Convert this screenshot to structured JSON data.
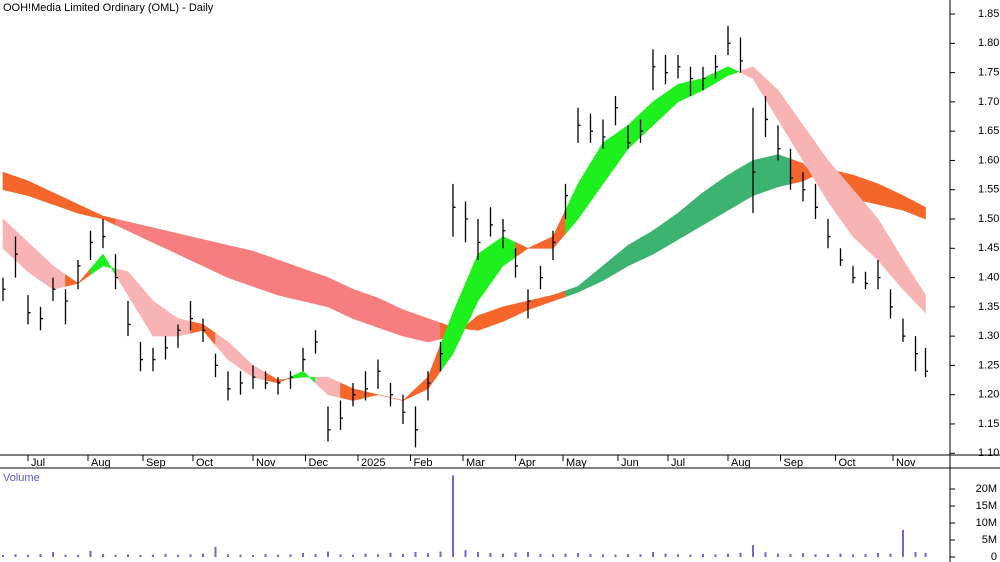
{
  "chart_data": [
    {
      "type": "ohlc",
      "title": "OOH!Media Limited Ordinary (OML) - Daily",
      "color": "#000000",
      "x": [
        0,
        5,
        10,
        15,
        20,
        25,
        30,
        35,
        40,
        45,
        50,
        55,
        60,
        65,
        70,
        75,
        80,
        85,
        90,
        95,
        100,
        105,
        110,
        115,
        120,
        125,
        130,
        135,
        140,
        145,
        150,
        155,
        160,
        165,
        170,
        175,
        180,
        185,
        190,
        195,
        200,
        205,
        210,
        215,
        220,
        225,
        230,
        235,
        240,
        245,
        250,
        255,
        260,
        265,
        270,
        275,
        280,
        285,
        290,
        295,
        300,
        305,
        310,
        315,
        320,
        325,
        330,
        335,
        340,
        345,
        350,
        355,
        360,
        365,
        369
      ],
      "high": [
        1.4,
        1.47,
        1.37,
        1.35,
        1.4,
        1.38,
        1.43,
        1.48,
        1.5,
        1.44,
        1.36,
        1.29,
        1.28,
        1.3,
        1.32,
        1.36,
        1.33,
        1.27,
        1.24,
        1.24,
        1.25,
        1.24,
        1.23,
        1.24,
        1.28,
        1.31,
        1.18,
        1.19,
        1.22,
        1.24,
        1.26,
        1.22,
        1.2,
        1.18,
        1.24,
        1.29,
        1.56,
        1.53,
        1.5,
        1.52,
        1.5,
        1.45,
        1.38,
        1.42,
        1.48,
        1.56,
        1.69,
        1.68,
        1.67,
        1.71,
        1.66,
        1.67,
        1.79,
        1.78,
        1.78,
        1.76,
        1.76,
        1.78,
        1.83,
        1.81,
        1.69,
        1.71,
        1.66,
        1.62,
        1.58,
        1.56,
        1.5,
        1.45,
        1.42,
        1.41,
        1.43,
        1.38,
        1.33,
        1.3,
        1.28
      ],
      "low": [
        1.36,
        1.4,
        1.32,
        1.31,
        1.36,
        1.32,
        1.38,
        1.43,
        1.45,
        1.38,
        1.3,
        1.24,
        1.24,
        1.26,
        1.28,
        1.31,
        1.29,
        1.23,
        1.19,
        1.2,
        1.21,
        1.21,
        1.2,
        1.21,
        1.24,
        1.27,
        1.12,
        1.14,
        1.18,
        1.19,
        1.21,
        1.18,
        1.15,
        1.11,
        1.19,
        1.24,
        1.47,
        1.46,
        1.43,
        1.47,
        1.45,
        1.4,
        1.33,
        1.38,
        1.43,
        1.5,
        1.63,
        1.63,
        1.62,
        1.66,
        1.62,
        1.63,
        1.72,
        1.73,
        1.74,
        1.71,
        1.72,
        1.74,
        1.78,
        1.75,
        1.51,
        1.64,
        1.6,
        1.55,
        1.53,
        1.5,
        1.45,
        1.42,
        1.39,
        1.38,
        1.38,
        1.33,
        1.29,
        1.24,
        1.23
      ],
      "close": [
        1.38,
        1.44,
        1.34,
        1.33,
        1.38,
        1.36,
        1.42,
        1.46,
        1.47,
        1.4,
        1.32,
        1.26,
        1.26,
        1.28,
        1.31,
        1.33,
        1.31,
        1.25,
        1.21,
        1.22,
        1.23,
        1.22,
        1.22,
        1.23,
        1.26,
        1.29,
        1.14,
        1.16,
        1.2,
        1.21,
        1.24,
        1.2,
        1.17,
        1.14,
        1.22,
        1.27,
        1.52,
        1.5,
        1.46,
        1.49,
        1.48,
        1.42,
        1.36,
        1.4,
        1.46,
        1.54,
        1.66,
        1.65,
        1.64,
        1.69,
        1.63,
        1.65,
        1.76,
        1.75,
        1.76,
        1.74,
        1.74,
        1.76,
        1.8,
        1.77,
        1.58,
        1.67,
        1.62,
        1.57,
        1.55,
        1.52,
        1.47,
        1.43,
        1.4,
        1.39,
        1.4,
        1.35,
        1.3,
        1.27,
        1.24
      ],
      "ribbon_x": [
        0,
        10,
        20,
        30,
        40,
        50,
        60,
        70,
        80,
        90,
        100,
        110,
        120,
        130,
        140,
        150,
        160,
        170,
        180,
        190,
        200,
        210,
        220,
        230,
        240,
        250,
        260,
        270,
        280,
        290,
        300,
        310,
        320,
        330,
        340,
        350,
        360,
        369
      ],
      "ribbons": [
        {
          "fast": [
            1.55,
            1.54,
            1.525,
            1.51,
            1.5,
            1.48,
            1.46,
            1.44,
            1.42,
            1.4,
            1.385,
            1.37,
            1.36,
            1.35,
            1.33,
            1.315,
            1.3,
            1.29,
            1.3,
            1.335,
            1.35,
            1.36,
            1.37,
            1.385,
            1.42,
            1.455,
            1.48,
            1.51,
            1.545,
            1.575,
            1.6,
            1.61,
            1.595,
            1.545,
            1.535,
            1.525,
            1.515,
            1.5
          ],
          "slow": [
            1.58,
            1.565,
            1.545,
            1.525,
            1.505,
            1.495,
            1.485,
            1.475,
            1.465,
            1.455,
            1.445,
            1.43,
            1.415,
            1.4,
            1.38,
            1.365,
            1.345,
            1.33,
            1.315,
            1.31,
            1.325,
            1.345,
            1.36,
            1.375,
            1.395,
            1.42,
            1.44,
            1.465,
            1.49,
            1.515,
            1.54,
            1.555,
            1.565,
            1.585,
            1.575,
            1.56,
            1.54,
            1.52
          ],
          "colors": [
            "#f4662a",
            "#f4662a",
            "#f4662a",
            "#f4662a",
            "#f4662a",
            "#f77e7e",
            "#f77e7e",
            "#f77e7e",
            "#f77e7e",
            "#f77e7e",
            "#f77e7e",
            "#f77e7e",
            "#f77e7e",
            "#f77e7e",
            "#f77e7e",
            "#f77e7e",
            "#f77e7e",
            "#f77e7e",
            "#f4662a",
            "#f4662a",
            "#f4662a",
            "#f4662a",
            "#f4662a",
            "#3cb371",
            "#3cb371",
            "#3cb371",
            "#3cb371",
            "#3cb371",
            "#3cb371",
            "#3cb371",
            "#3cb371",
            "#3cb371",
            "#f4662a",
            "#f4662a",
            "#f4662a",
            "#f4662a",
            "#f4662a",
            "#f4662a"
          ]
        },
        {
          "fast": [
            1.45,
            1.41,
            1.38,
            1.39,
            1.44,
            1.37,
            1.3,
            1.3,
            1.31,
            1.26,
            1.23,
            1.22,
            1.24,
            1.2,
            1.19,
            1.2,
            1.19,
            1.23,
            1.34,
            1.44,
            1.47,
            1.45,
            1.47,
            1.56,
            1.63,
            1.66,
            1.7,
            1.73,
            1.74,
            1.76,
            1.74,
            1.67,
            1.6,
            1.53,
            1.47,
            1.43,
            1.38,
            1.34
          ],
          "slow": [
            1.5,
            1.46,
            1.42,
            1.39,
            1.42,
            1.41,
            1.36,
            1.33,
            1.32,
            1.29,
            1.25,
            1.225,
            1.23,
            1.23,
            1.21,
            1.2,
            1.19,
            1.21,
            1.27,
            1.36,
            1.42,
            1.45,
            1.45,
            1.5,
            1.56,
            1.62,
            1.66,
            1.7,
            1.72,
            1.745,
            1.76,
            1.72,
            1.66,
            1.6,
            1.55,
            1.5,
            1.43,
            1.37
          ],
          "colors": [
            "#f8b4b4",
            "#f8b4b4",
            "#f8b4b4",
            "#f4662a",
            "#1ef01e",
            "#f8b4b4",
            "#f8b4b4",
            "#f8b4b4",
            "#f4662a",
            "#f8b4b4",
            "#f8b4b4",
            "#f4662a",
            "#1ef01e",
            "#f8b4b4",
            "#f4662a",
            "#f4662a",
            "#f4662a",
            "#f4662a",
            "#1ef01e",
            "#1ef01e",
            "#1ef01e",
            "#f4662a",
            "#f4662a",
            "#1ef01e",
            "#1ef01e",
            "#1ef01e",
            "#1ef01e",
            "#1ef01e",
            "#1ef01e",
            "#1ef01e",
            "#f8b4b4",
            "#f8b4b4",
            "#f8b4b4",
            "#f8b4b4",
            "#f8b4b4",
            "#f8b4b4",
            "#f8b4b4",
            "#f8b4b4"
          ]
        }
      ],
      "xlim": [
        -1.2,
        378.8
      ],
      "xticks": [
        {
          "value": 10,
          "label": "Jul"
        },
        {
          "value": 34,
          "label": "Aug"
        },
        {
          "value": 56,
          "label": "Sep"
        },
        {
          "value": 76,
          "label": "Oct"
        },
        {
          "value": 100,
          "label": "Nov"
        },
        {
          "value": 121,
          "label": "Dec"
        },
        {
          "value": 142,
          "label": "2025"
        },
        {
          "value": 163,
          "label": "Feb"
        },
        {
          "value": 184,
          "label": "Mar"
        },
        {
          "value": 205,
          "label": "Apr"
        },
        {
          "value": 224,
          "label": "May"
        },
        {
          "value": 246,
          "label": "Jun"
        },
        {
          "value": 266,
          "label": "Jul"
        },
        {
          "value": 290,
          "label": "Aug"
        },
        {
          "value": 311,
          "label": "Sep"
        },
        {
          "value": 333,
          "label": "Oct"
        },
        {
          "value": 356,
          "label": "Nov"
        }
      ],
      "ylim": [
        1.097,
        1.874
      ],
      "yticks": [
        {
          "value": 1.1,
          "label": "1.10"
        },
        1.15,
        {
          "value": 1.2,
          "label": "1.20"
        },
        1.25,
        {
          "value": 1.3,
          "label": "1.30"
        },
        1.35,
        {
          "value": 1.4,
          "label": "1.40"
        },
        1.45,
        {
          "value": 1.5,
          "label": "1.50"
        },
        1.55,
        {
          "value": 1.6,
          "label": "1.60"
        },
        1.65,
        {
          "value": 1.7,
          "label": "1.70"
        },
        1.75,
        {
          "value": 1.8,
          "label": "1.80"
        },
        1.85
      ]
    },
    {
      "type": "bar",
      "title": "Volume",
      "color": "#6a6ad0",
      "x": [
        0,
        5,
        10,
        15,
        20,
        25,
        30,
        35,
        40,
        45,
        50,
        55,
        60,
        65,
        70,
        75,
        80,
        85,
        90,
        95,
        100,
        105,
        110,
        115,
        120,
        125,
        130,
        135,
        140,
        145,
        150,
        155,
        160,
        165,
        170,
        175,
        180,
        185,
        190,
        195,
        200,
        205,
        210,
        215,
        220,
        225,
        230,
        235,
        240,
        245,
        250,
        255,
        260,
        265,
        270,
        275,
        280,
        285,
        290,
        295,
        300,
        305,
        310,
        315,
        320,
        325,
        330,
        335,
        340,
        345,
        350,
        355,
        360,
        365,
        369
      ],
      "values": [
        600000,
        800000,
        700000,
        900000,
        1500000,
        700000,
        600000,
        1800000,
        900000,
        700000,
        800000,
        600000,
        700000,
        900000,
        700000,
        800000,
        1000000,
        3000000,
        800000,
        700000,
        600000,
        900000,
        700000,
        800000,
        1200000,
        900000,
        1600000,
        800000,
        700000,
        1000000,
        800000,
        1200000,
        900000,
        1500000,
        1100000,
        1600000,
        24000000,
        2000000,
        1500000,
        1200000,
        1000000,
        1300000,
        1500000,
        900000,
        800000,
        1000000,
        1200000,
        900000,
        800000,
        700000,
        900000,
        800000,
        1500000,
        1000000,
        800000,
        700000,
        900000,
        800000,
        1000000,
        1200000,
        3500000,
        1400000,
        1000000,
        900000,
        1100000,
        800000,
        900000,
        1000000,
        800000,
        900000,
        1200000,
        1000000,
        8000000,
        1500000,
        1200000
      ],
      "xlim": [
        -1.2,
        378.8
      ],
      "ylim": [
        0,
        25600000
      ],
      "yticks": [
        0,
        {
          "value": 5000000,
          "label": "5M"
        },
        {
          "value": 10000000,
          "label": "10M"
        },
        {
          "value": 15000000,
          "label": "15M"
        },
        {
          "value": 20000000,
          "label": "20M"
        }
      ]
    }
  ]
}
